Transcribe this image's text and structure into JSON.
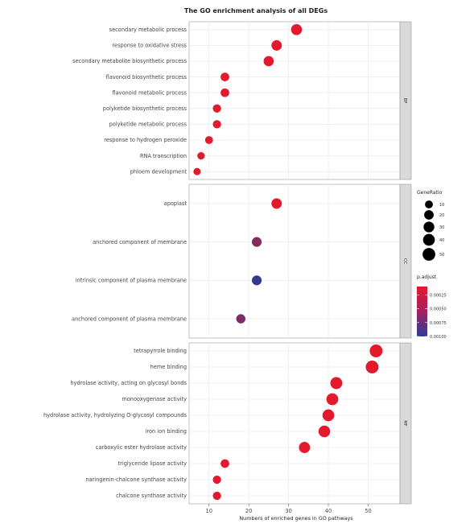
{
  "chart_data": {
    "type": "scatter",
    "title": "The GO enrichment analysis of all DEGs",
    "xlabel": "Numbers of enriched genes in GO pathways",
    "xlim": [
      5,
      58
    ],
    "x_ticks": [
      10,
      20,
      30,
      40,
      50
    ],
    "facets": [
      {
        "strip": "BP",
        "points": [
          {
            "term": "secondary metabolic process",
            "count": 32,
            "padj": 0.0001
          },
          {
            "term": "response to oxidative stress",
            "count": 27,
            "padj": 0.0001
          },
          {
            "term": "secondary metabolite biosynthetic process",
            "count": 25,
            "padj": 0.0001
          },
          {
            "term": "flavonoid biosynthetic process",
            "count": 14,
            "padj": 0.0001
          },
          {
            "term": "flavonoid metabolic process",
            "count": 14,
            "padj": 0.0001
          },
          {
            "term": "polyketide biosynthetic process",
            "count": 12,
            "padj": 0.0001
          },
          {
            "term": "polyketide metabolic process",
            "count": 12,
            "padj": 0.0001
          },
          {
            "term": "response to hydrogen peroxide",
            "count": 10,
            "padj": 0.0001
          },
          {
            "term": "RNA transcription",
            "count": 8,
            "padj": 0.0001
          },
          {
            "term": "phloem development",
            "count": 7,
            "padj": 0.0001
          }
        ]
      },
      {
        "strip": "CC",
        "points": [
          {
            "term": "apoplast",
            "count": 27,
            "padj": 0.0001
          },
          {
            "term": "anchored component of membrane",
            "count": 22,
            "padj": 0.00055
          },
          {
            "term": "intrinsic component of plasma membrane",
            "count": 22,
            "padj": 0.00095
          },
          {
            "term": "anchored component of plasma membrane",
            "count": 18,
            "padj": 0.0006
          }
        ]
      },
      {
        "strip": "MF",
        "points": [
          {
            "term": "tetrapyrrole binding",
            "count": 52,
            "padj": 0.0001
          },
          {
            "term": "heme binding",
            "count": 51,
            "padj": 0.0001
          },
          {
            "term": "hydrolase activity, acting on glycosyl bonds",
            "count": 42,
            "padj": 0.0001
          },
          {
            "term": "monooxygenase activity",
            "count": 41,
            "padj": 0.0001
          },
          {
            "term": "hydrolase activity, hydrolyzing O-glycosyl compounds",
            "count": 40,
            "padj": 0.0001
          },
          {
            "term": "iron ion binding",
            "count": 39,
            "padj": 0.0001
          },
          {
            "term": "carboxylic ester hydrolase activity",
            "count": 34,
            "padj": 0.0001
          },
          {
            "term": "triglyceride lipase activity",
            "count": 14,
            "padj": 0.0001
          },
          {
            "term": "naringenin-chalcone synthase activity",
            "count": 12,
            "padj": 0.0001
          },
          {
            "term": "chalcone synthase activity",
            "count": 12,
            "padj": 0.0001
          }
        ]
      }
    ],
    "size_legend": {
      "title": "GeneRatio",
      "values": [
        10,
        20,
        30,
        40,
        50
      ],
      "labels": [
        "10",
        "20",
        "30",
        "40",
        "50"
      ]
    },
    "color_legend": {
      "title": "p.adjust",
      "range": [
        0.0001,
        0.001
      ],
      "ticks": [
        0.00025,
        0.0005,
        0.00075,
        0.001
      ],
      "labels": [
        "0.00025",
        "0.00050",
        "0.00075",
        "0.00100"
      ],
      "low_color": "#e3192e",
      "high_color": "#2a3c96"
    },
    "panel_background": "#ffffff",
    "grid": true,
    "grid_color": "#ebebeb",
    "strip_color": "#d9d9d9",
    "legend_position": "right"
  }
}
